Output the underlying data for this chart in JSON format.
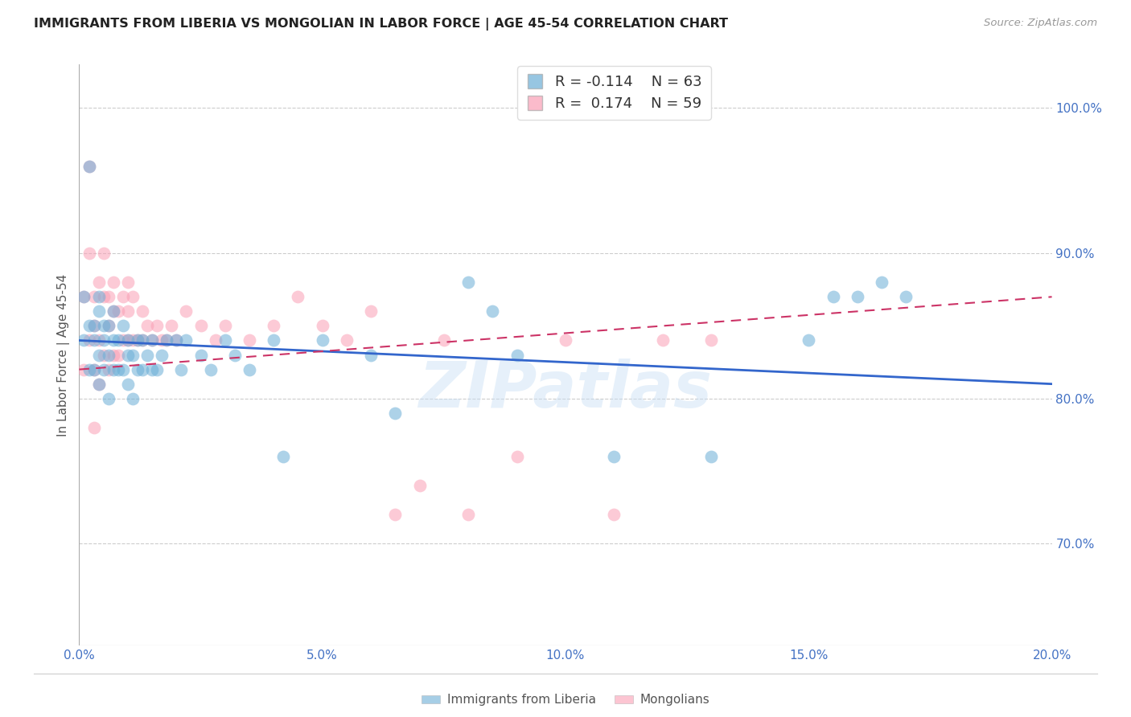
{
  "title": "IMMIGRANTS FROM LIBERIA VS MONGOLIAN IN LABOR FORCE | AGE 45-54 CORRELATION CHART",
  "source": "Source: ZipAtlas.com",
  "ylabel": "In Labor Force | Age 45-54",
  "x_min": 0.0,
  "x_max": 0.2,
  "y_min": 0.63,
  "y_max": 1.03,
  "yticks": [
    0.7,
    0.8,
    0.9,
    1.0
  ],
  "ytick_labels": [
    "70.0%",
    "80.0%",
    "90.0%",
    "100.0%"
  ],
  "xticks": [
    0.0,
    0.05,
    0.1,
    0.15,
    0.2
  ],
  "xtick_labels": [
    "0.0%",
    "5.0%",
    "10.0%",
    "15.0%",
    "20.0%"
  ],
  "liberia_color": "#6baed6",
  "mongolian_color": "#fa9fb5",
  "liberia_R": -0.114,
  "liberia_N": 63,
  "mongolian_R": 0.174,
  "mongolian_N": 59,
  "watermark": "ZIPatlas",
  "background_color": "#ffffff",
  "tick_color": "#4472c4",
  "grid_color": "#cccccc",
  "liberia_x": [
    0.001,
    0.001,
    0.002,
    0.002,
    0.002,
    0.003,
    0.003,
    0.003,
    0.004,
    0.004,
    0.004,
    0.004,
    0.005,
    0.005,
    0.005,
    0.006,
    0.006,
    0.006,
    0.007,
    0.007,
    0.007,
    0.008,
    0.008,
    0.009,
    0.009,
    0.01,
    0.01,
    0.01,
    0.011,
    0.011,
    0.012,
    0.012,
    0.013,
    0.013,
    0.014,
    0.015,
    0.015,
    0.016,
    0.017,
    0.018,
    0.02,
    0.021,
    0.022,
    0.025,
    0.027,
    0.03,
    0.032,
    0.035,
    0.04,
    0.042,
    0.05,
    0.06,
    0.065,
    0.08,
    0.085,
    0.09,
    0.11,
    0.13,
    0.15,
    0.155,
    0.16,
    0.165,
    0.17
  ],
  "liberia_y": [
    0.84,
    0.87,
    0.82,
    0.85,
    0.96,
    0.82,
    0.85,
    0.84,
    0.81,
    0.83,
    0.86,
    0.87,
    0.82,
    0.84,
    0.85,
    0.8,
    0.83,
    0.85,
    0.82,
    0.84,
    0.86,
    0.82,
    0.84,
    0.82,
    0.85,
    0.81,
    0.83,
    0.84,
    0.8,
    0.83,
    0.82,
    0.84,
    0.82,
    0.84,
    0.83,
    0.82,
    0.84,
    0.82,
    0.83,
    0.84,
    0.84,
    0.82,
    0.84,
    0.83,
    0.82,
    0.84,
    0.83,
    0.82,
    0.84,
    0.76,
    0.84,
    0.83,
    0.79,
    0.88,
    0.86,
    0.83,
    0.76,
    0.76,
    0.84,
    0.87,
    0.87,
    0.88,
    0.87
  ],
  "mongolian_x": [
    0.001,
    0.001,
    0.002,
    0.002,
    0.002,
    0.003,
    0.003,
    0.003,
    0.003,
    0.004,
    0.004,
    0.004,
    0.005,
    0.005,
    0.005,
    0.006,
    0.006,
    0.006,
    0.007,
    0.007,
    0.007,
    0.008,
    0.008,
    0.009,
    0.009,
    0.01,
    0.01,
    0.01,
    0.011,
    0.011,
    0.012,
    0.013,
    0.013,
    0.014,
    0.015,
    0.016,
    0.017,
    0.018,
    0.019,
    0.02,
    0.022,
    0.025,
    0.028,
    0.03,
    0.035,
    0.04,
    0.045,
    0.05,
    0.055,
    0.06,
    0.065,
    0.07,
    0.075,
    0.08,
    0.09,
    0.1,
    0.11,
    0.12,
    0.13
  ],
  "mongolian_y": [
    0.82,
    0.87,
    0.84,
    0.9,
    0.96,
    0.78,
    0.82,
    0.85,
    0.87,
    0.81,
    0.84,
    0.88,
    0.83,
    0.87,
    0.9,
    0.82,
    0.85,
    0.87,
    0.83,
    0.86,
    0.88,
    0.83,
    0.86,
    0.84,
    0.87,
    0.84,
    0.86,
    0.88,
    0.84,
    0.87,
    0.84,
    0.84,
    0.86,
    0.85,
    0.84,
    0.85,
    0.84,
    0.84,
    0.85,
    0.84,
    0.86,
    0.85,
    0.84,
    0.85,
    0.84,
    0.85,
    0.87,
    0.85,
    0.84,
    0.86,
    0.72,
    0.74,
    0.84,
    0.72,
    0.76,
    0.84,
    0.72,
    0.84,
    0.84
  ],
  "blue_line_x": [
    0.0,
    0.2
  ],
  "blue_line_y": [
    0.84,
    0.81
  ],
  "pink_line_x": [
    0.0,
    0.2
  ],
  "pink_line_y": [
    0.82,
    0.87
  ]
}
